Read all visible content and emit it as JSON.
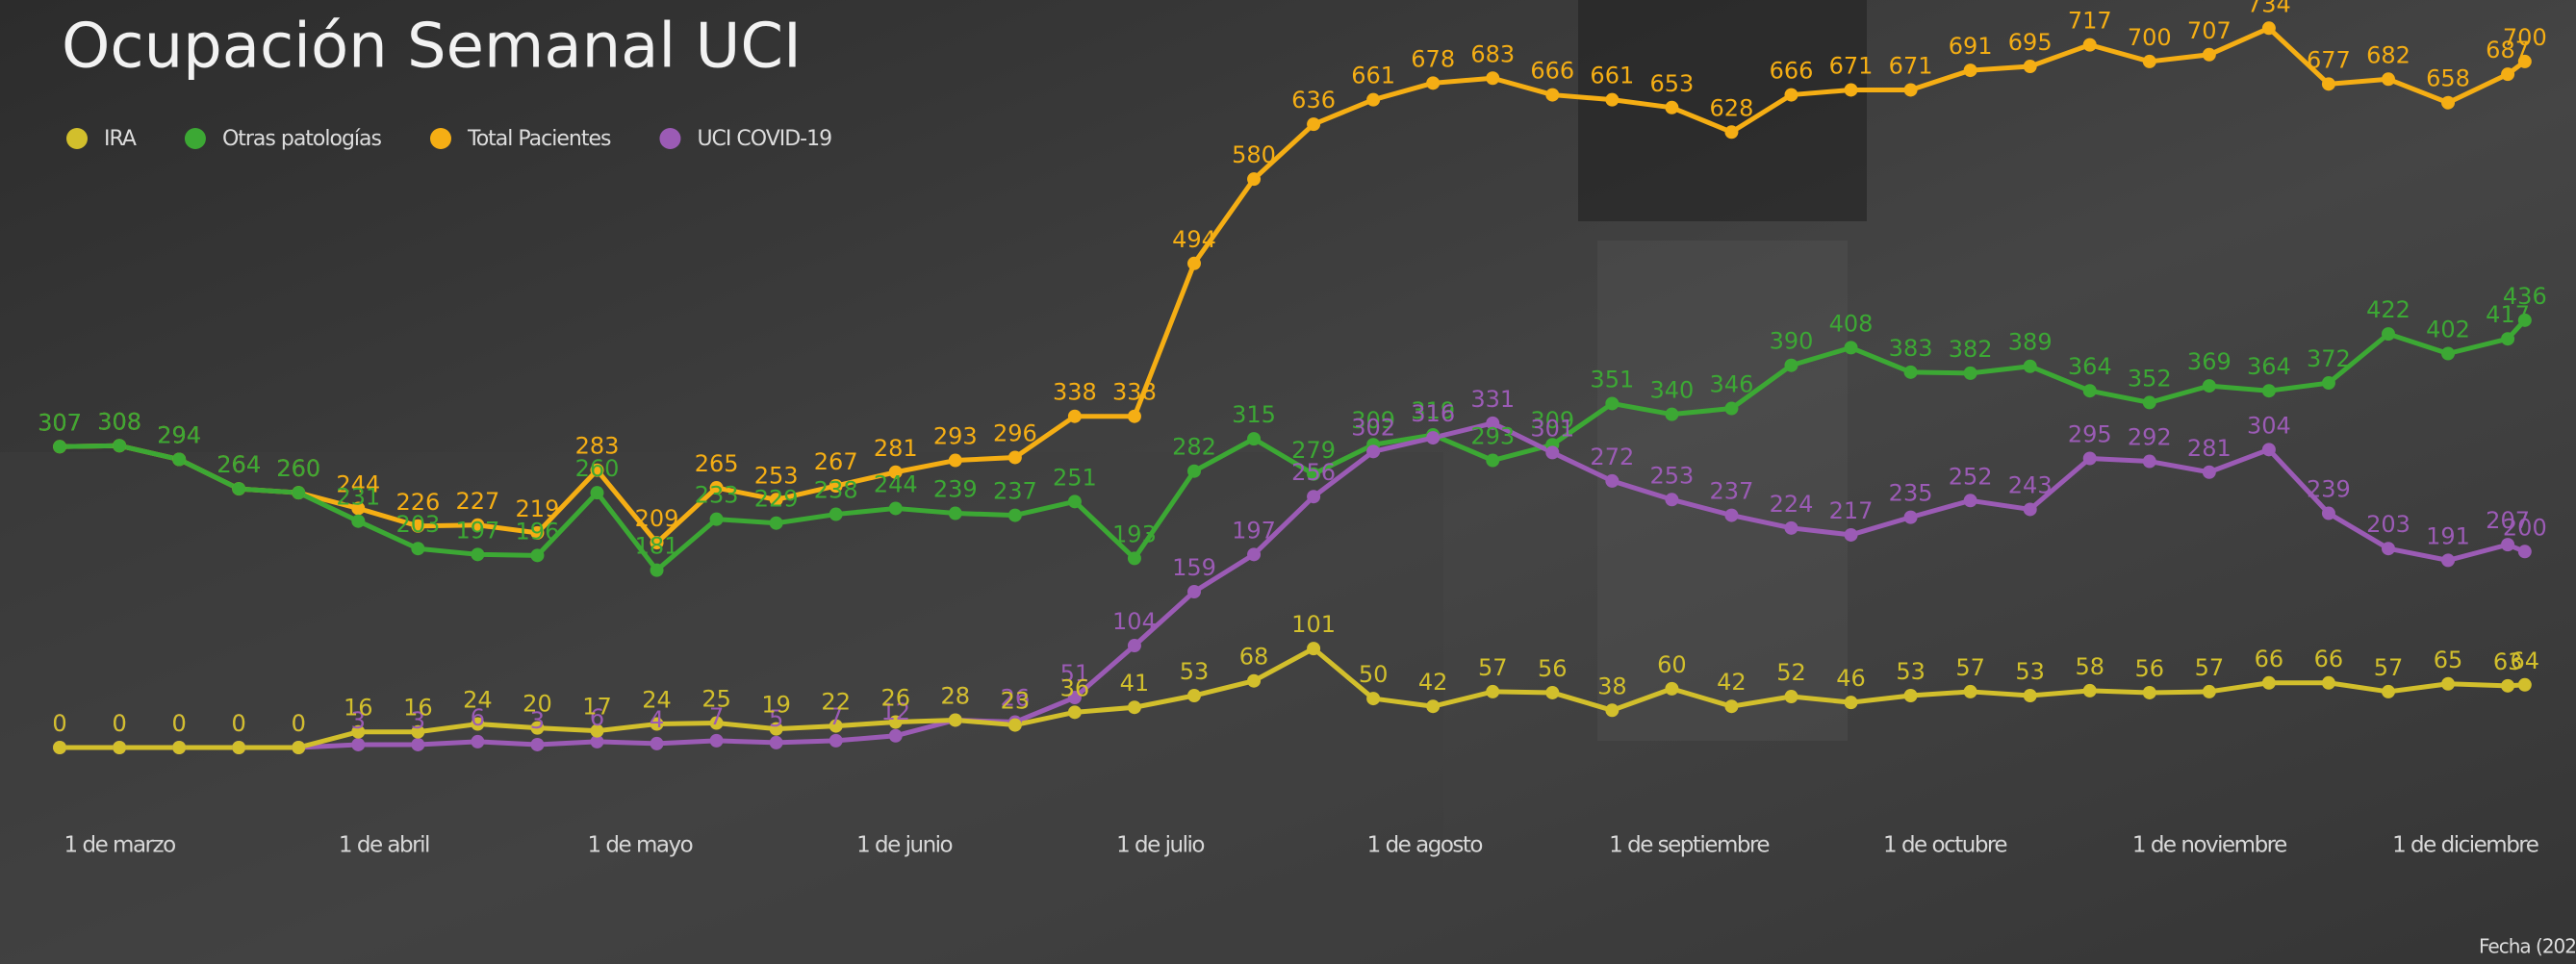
{
  "chart_data": {
    "type": "line",
    "title": "Ocupación Semanal UCI",
    "note": "Fecha (202",
    "x": [
      -7,
      0,
      7,
      14,
      21,
      28,
      35,
      42,
      49,
      56,
      63,
      70,
      77,
      84,
      91,
      98,
      105,
      112,
      119,
      126,
      133,
      140,
      147,
      154,
      161,
      168,
      175,
      182,
      189,
      196,
      203,
      210,
      217,
      224,
      231,
      238,
      245,
      252,
      259,
      266,
      273,
      280,
      282
    ],
    "xlim": [
      -14,
      288
    ],
    "xticks": [
      {
        "value": 0,
        "label": "1 de marzo"
      },
      {
        "value": 31,
        "label": "1 de abril"
      },
      {
        "value": 61,
        "label": "1 de mayo"
      },
      {
        "value": 92,
        "label": "1 de junio"
      },
      {
        "value": 122,
        "label": "1 de julio"
      },
      {
        "value": 153,
        "label": "1 de agosto"
      },
      {
        "value": 184,
        "label": "1 de septiembre"
      },
      {
        "value": 214,
        "label": "1 de octubre"
      },
      {
        "value": 245,
        "label": "1 de noviembre"
      },
      {
        "value": 275,
        "label": "1 de diciembre"
      }
    ],
    "ylim": [
      0,
      750
    ],
    "legend": "top-left",
    "series": [
      {
        "name": "IRA",
        "color": "#d2bf2c",
        "values": [
          0,
          0,
          0,
          0,
          0,
          16,
          16,
          24,
          20,
          17,
          24,
          25,
          19,
          22,
          26,
          28,
          23,
          36,
          41,
          53,
          68,
          101,
          50,
          42,
          57,
          56,
          38,
          60,
          42,
          52,
          46,
          53,
          57,
          53,
          58,
          56,
          57,
          66,
          66,
          57,
          65,
          63,
          64
        ]
      },
      {
        "name": "Otras patologías",
        "color": "#3ca834",
        "values": [
          307,
          308,
          294,
          264,
          260,
          231,
          203,
          197,
          196,
          260,
          181,
          233,
          229,
          238,
          244,
          239,
          237,
          251,
          193,
          282,
          315,
          279,
          309,
          319,
          293,
          309,
          351,
          340,
          346,
          390,
          408,
          383,
          382,
          389,
          364,
          352,
          369,
          364,
          372,
          422,
          402,
          417,
          436
        ]
      },
      {
        "name": "Total Pacientes",
        "color": "#f5ae14",
        "values": [
          307,
          308,
          294,
          264,
          260,
          244,
          226,
          227,
          219,
          283,
          209,
          265,
          253,
          267,
          281,
          293,
          296,
          338,
          338,
          494,
          580,
          636,
          661,
          678,
          683,
          666,
          661,
          653,
          628,
          666,
          671,
          671,
          691,
          695,
          717,
          700,
          707,
          734,
          677,
          682,
          658,
          687,
          700
        ]
      },
      {
        "name": "UCI COVID-19",
        "color": "#9b5bb5",
        "values": [
          0,
          0,
          0,
          0,
          0,
          3,
          3,
          6,
          3,
          6,
          4,
          7,
          5,
          7,
          12,
          28,
          26,
          51,
          104,
          159,
          197,
          256,
          302,
          316,
          331,
          301,
          272,
          253,
          237,
          224,
          217,
          235,
          252,
          243,
          295,
          292,
          281,
          304,
          239,
          203,
          191,
          207,
          200
        ]
      }
    ]
  }
}
